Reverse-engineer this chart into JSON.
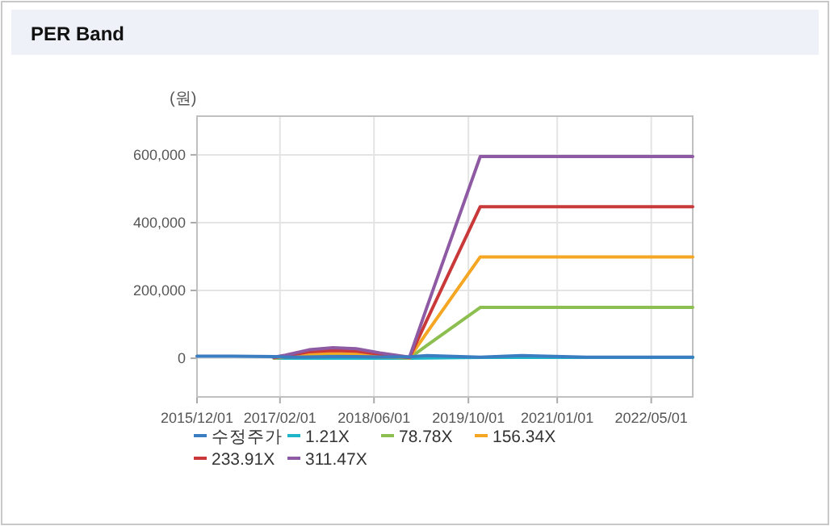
{
  "chart_data": {
    "type": "line",
    "title": "PER Band",
    "ylabel": "(원)",
    "x": [
      "2015-12-01",
      "2016-06-01",
      "2017-01-01",
      "2017-03-01",
      "2017-07-01",
      "2017-11-01",
      "2018-03-01",
      "2018-07-01",
      "2018-12-01",
      "2019-03-01",
      "2019-12-01",
      "2020-07-01",
      "2021-06-01",
      "2022-12-01"
    ],
    "series": [
      {
        "name": "수정주가",
        "color": "#3a7dc0",
        "values": [
          6000,
          6000,
          5000,
          3000,
          4000,
          5000,
          5000,
          4000,
          4000,
          8000,
          3000,
          8000,
          3000,
          3000
        ]
      },
      {
        "name": "1.21X",
        "color": "#1fb5c9",
        "values": [
          null,
          null,
          0,
          0,
          100,
          100,
          100,
          100,
          0,
          600,
          2300,
          2300,
          2300,
          2300
        ]
      },
      {
        "name": "78.78X",
        "color": "#8cbf4f",
        "values": [
          null,
          null,
          800,
          2400,
          6300,
          7900,
          7100,
          3900,
          800,
          38000,
          150000,
          150000,
          150000,
          150000
        ]
      },
      {
        "name": "156.34X",
        "color": "#f5a623",
        "values": [
          null,
          null,
          1600,
          4700,
          12500,
          15600,
          14000,
          7800,
          1600,
          76000,
          299000,
          299000,
          299000,
          299000
        ]
      },
      {
        "name": "233.91X",
        "color": "#c9393a",
        "values": [
          null,
          null,
          2000,
          7000,
          19000,
          23000,
          21000,
          12000,
          2000,
          113000,
          447000,
          447000,
          447000,
          447000
        ]
      },
      {
        "name": "311.47X",
        "color": "#8e5aa3",
        "values": [
          null,
          null,
          3000,
          9000,
          25000,
          31000,
          28000,
          16000,
          3000,
          151000,
          595000,
          595000,
          595000,
          595000
        ]
      }
    ],
    "xlim": [
      "2015-12-01",
      "2022-12-01"
    ],
    "xticks": [
      {
        "value": "2015-12-01",
        "label": "2015/12/01"
      },
      {
        "value": "2017-02-01",
        "label": "2017/02/01"
      },
      {
        "value": "2018-06-01",
        "label": "2018/06/01"
      },
      {
        "value": "2019-10-01",
        "label": "2019/10/01"
      },
      {
        "value": "2021-01-01",
        "label": "2021/01/01"
      },
      {
        "value": "2022-05-01",
        "label": "2022/05/01"
      }
    ],
    "ylim": [
      -114000,
      714000
    ],
    "yticks": [
      {
        "value": 0,
        "label": "0"
      },
      {
        "value": 200000,
        "label": "200,000"
      },
      {
        "value": 400000,
        "label": "400,000"
      },
      {
        "value": 600000,
        "label": "600,000"
      }
    ],
    "grid": true,
    "legend": "bottom",
    "marker": "none",
    "line_style": "solid"
  }
}
